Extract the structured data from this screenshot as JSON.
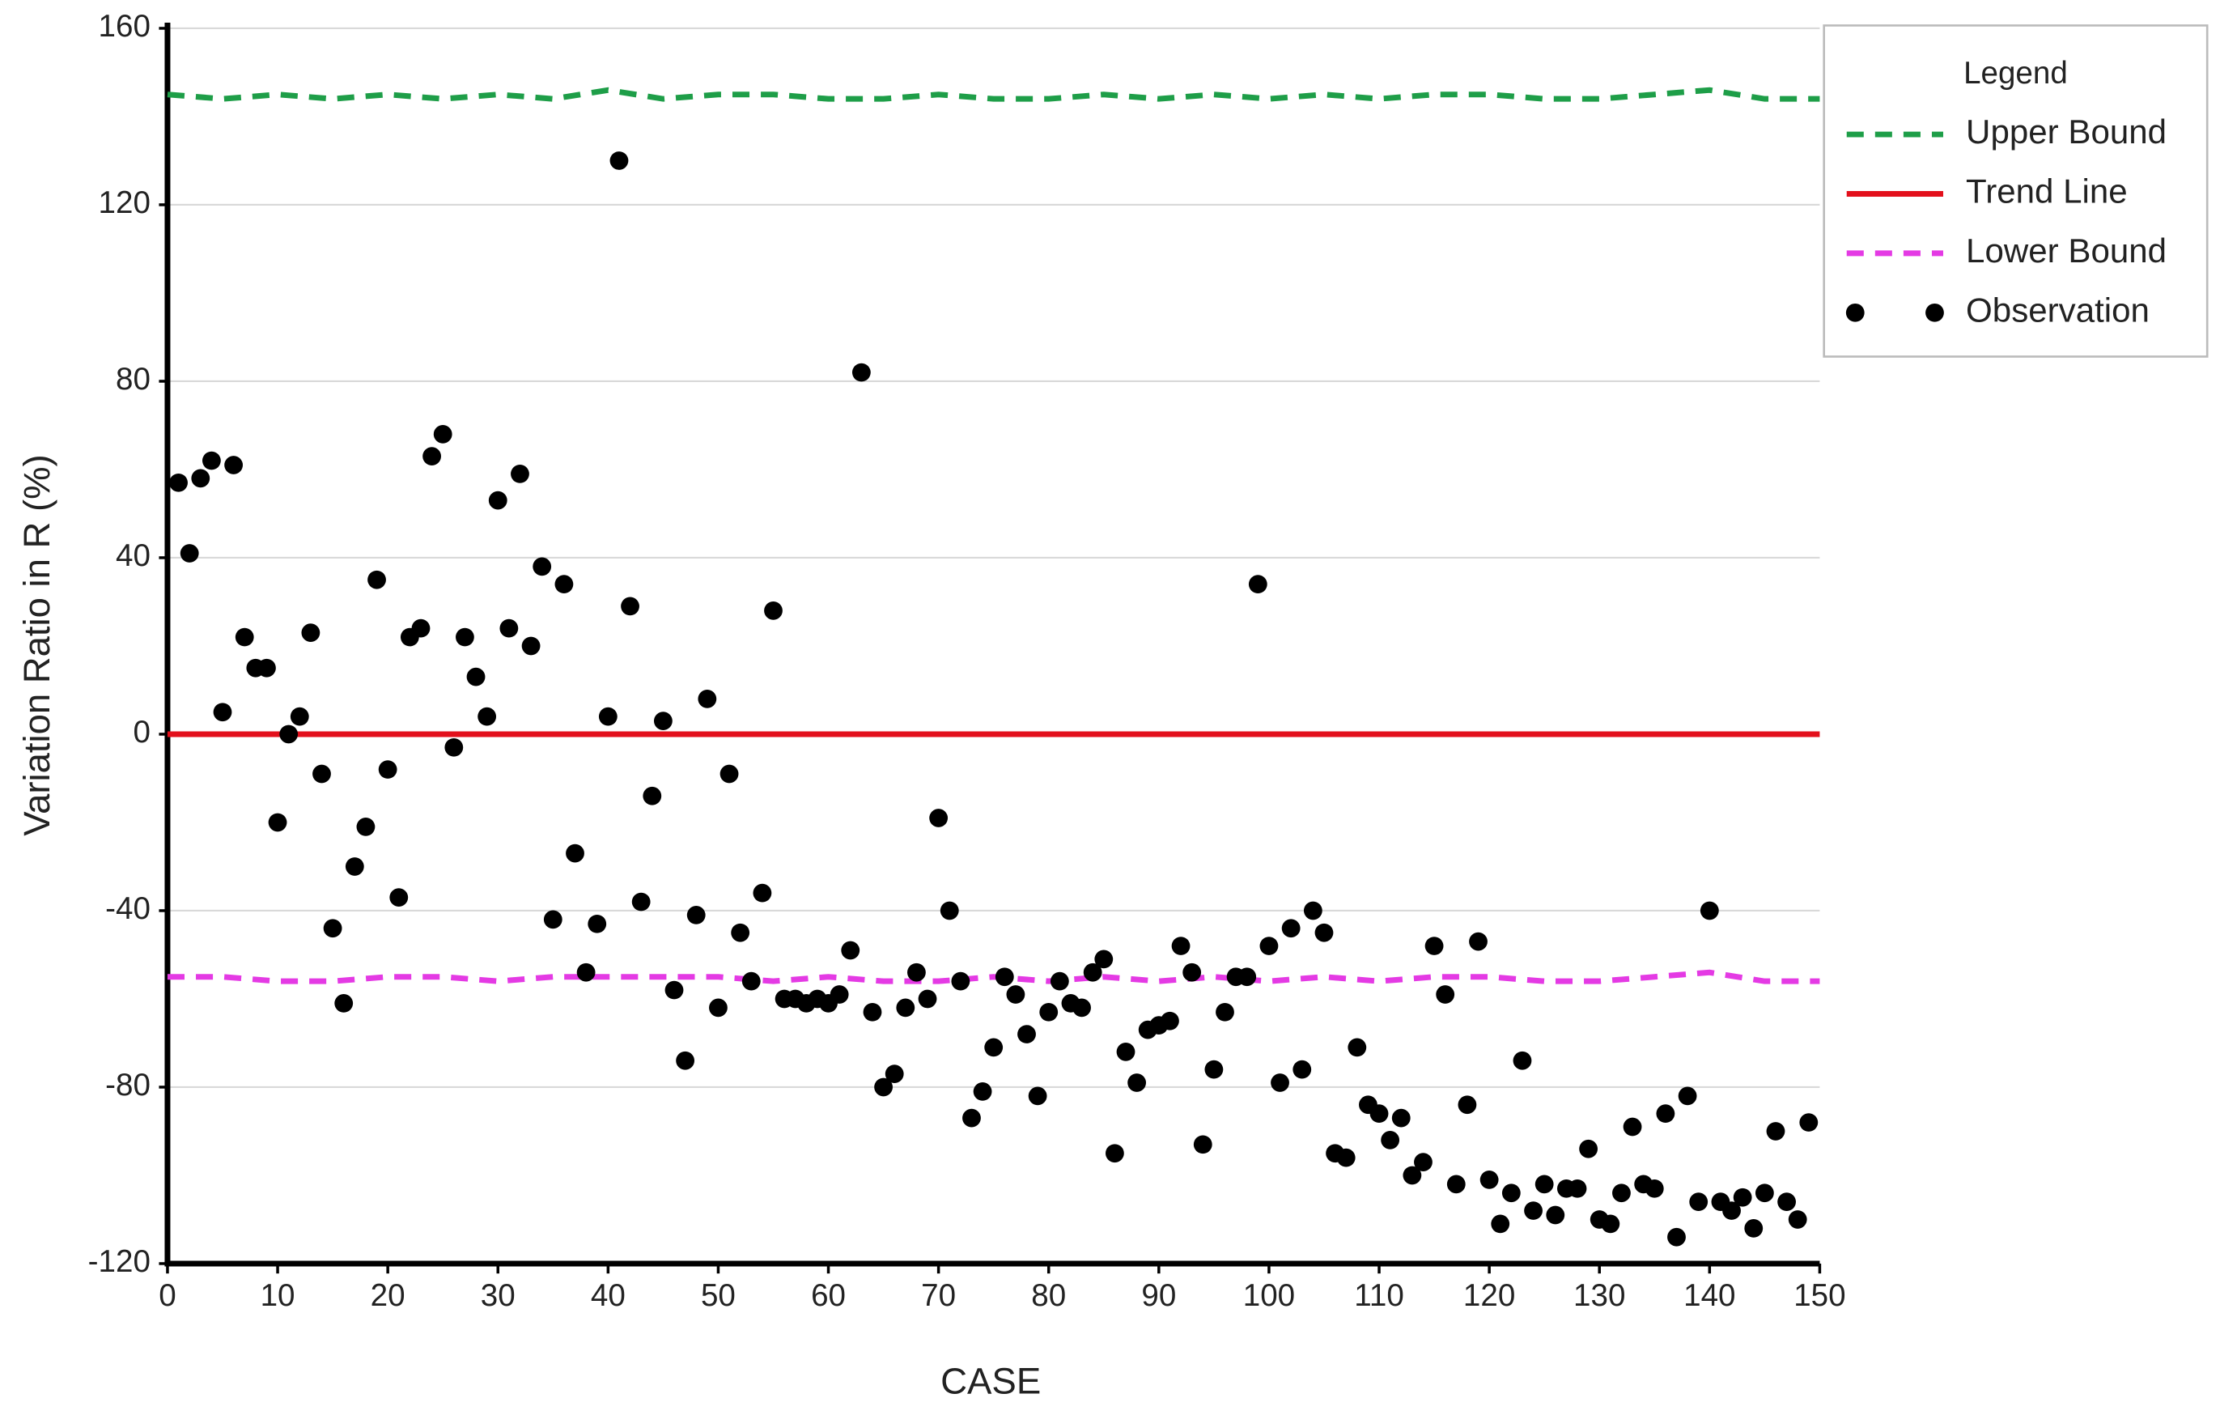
{
  "chart_data": {
    "type": "scatter",
    "x_label": "CASE",
    "y_label": "Variation Ratio in R (%)",
    "legend_title": "Legend",
    "legend": "upper right",
    "grid": "y",
    "xlim": [
      0,
      150
    ],
    "xticks": [
      0,
      10,
      20,
      30,
      40,
      50,
      60,
      70,
      80,
      90,
      100,
      110,
      120,
      130,
      140,
      150
    ],
    "ylim": [
      -120,
      160
    ],
    "yticks": [
      -120,
      -80,
      -40,
      0,
      40,
      80,
      120,
      160
    ],
    "series": [
      {
        "name": "Upper Bound",
        "color": "#1e9e48",
        "mode": "line",
        "dashed": true,
        "x": [
          0,
          5,
          10,
          15,
          20,
          25,
          30,
          35,
          40,
          45,
          50,
          55,
          60,
          65,
          70,
          75,
          80,
          85,
          90,
          95,
          100,
          105,
          110,
          115,
          120,
          125,
          130,
          135,
          140,
          145,
          150
        ],
        "values": [
          145,
          144,
          145,
          144,
          145,
          144,
          145,
          144,
          146,
          144,
          145,
          145,
          144,
          144,
          145,
          144,
          144,
          145,
          144,
          145,
          144,
          145,
          144,
          145,
          145,
          144,
          144,
          145,
          146,
          144,
          144
        ]
      },
      {
        "name": "Trend Line",
        "color": "#e3101c",
        "mode": "line",
        "dashed": false,
        "x": [
          0,
          150
        ],
        "values": [
          0,
          0
        ]
      },
      {
        "name": "Lower Bound",
        "color": "#e43ae4",
        "mode": "line",
        "dashed": true,
        "x": [
          0,
          5,
          10,
          15,
          20,
          25,
          30,
          35,
          40,
          45,
          50,
          55,
          60,
          65,
          70,
          75,
          80,
          85,
          90,
          95,
          100,
          105,
          110,
          115,
          120,
          125,
          130,
          135,
          140,
          145,
          150
        ],
        "values": [
          -55,
          -55,
          -56,
          -56,
          -55,
          -55,
          -56,
          -55,
          -55,
          -55,
          -55,
          -56,
          -55,
          -56,
          -56,
          -55,
          -56,
          -55,
          -56,
          -55,
          -56,
          -55,
          -56,
          -55,
          -55,
          -56,
          -56,
          -55,
          -54,
          -56,
          -56
        ]
      },
      {
        "name": "Observation",
        "color": "#000000",
        "mode": "markers",
        "x": [
          1,
          2,
          3,
          4,
          5,
          6,
          7,
          8,
          9,
          10,
          11,
          12,
          13,
          14,
          15,
          16,
          17,
          18,
          19,
          20,
          21,
          22,
          23,
          24,
          25,
          26,
          27,
          28,
          29,
          30,
          31,
          32,
          33,
          34,
          35,
          36,
          37,
          38,
          39,
          40,
          41,
          42,
          43,
          44,
          45,
          46,
          47,
          48,
          49,
          50,
          51,
          52,
          53,
          54,
          55,
          56,
          57,
          58,
          59,
          60,
          61,
          62,
          63,
          64,
          65,
          66,
          67,
          68,
          69,
          70,
          71,
          72,
          73,
          74,
          75,
          76,
          77,
          78,
          79,
          80,
          81,
          82,
          83,
          84,
          85,
          86,
          87,
          88,
          89,
          90,
          91,
          92,
          93,
          94,
          95,
          96,
          97,
          98,
          99,
          100,
          101,
          102,
          103,
          104,
          105,
          106,
          107,
          108,
          109,
          110,
          111,
          112,
          113,
          114,
          115,
          116,
          117,
          118,
          119,
          120,
          121,
          122,
          123,
          124,
          125,
          126,
          127,
          128,
          129,
          130,
          131,
          132,
          133,
          134,
          135,
          136,
          137,
          138,
          139,
          140,
          141,
          142,
          143,
          144,
          145,
          146,
          147,
          148,
          149
        ],
        "values": [
          57,
          41,
          58,
          62,
          5,
          61,
          22,
          15,
          15,
          -20,
          0,
          4,
          23,
          -9,
          -44,
          -61,
          -30,
          -21,
          35,
          -8,
          -37,
          22,
          24,
          63,
          68,
          -3,
          22,
          13,
          4,
          53,
          24,
          59,
          20,
          38,
          -42,
          34,
          -27,
          -54,
          -43,
          4,
          130,
          29,
          -38,
          -14,
          3,
          -58,
          -74,
          -41,
          8,
          -62,
          -9,
          -45,
          -56,
          -36,
          28,
          -60,
          -60,
          -61,
          -60,
          -61,
          -59,
          -49,
          82,
          -63,
          -80,
          -77,
          -62,
          -54,
          -60,
          -19,
          -40,
          -56,
          -87,
          -81,
          -71,
          -55,
          -59,
          -68,
          -82,
          -63,
          -56,
          -61,
          -62,
          -54,
          -51,
          -95,
          -72,
          -79,
          -67,
          -66,
          -65,
          -48,
          -54,
          -93,
          -76,
          -63,
          -55,
          -55,
          34,
          -48,
          -79,
          -44,
          -76,
          -40,
          -45,
          -95,
          -96,
          -71,
          -84,
          -86,
          -92,
          -87,
          -100,
          -97,
          -48,
          -59,
          -102,
          -84,
          -47,
          -101,
          -111,
          -104,
          -74,
          -108,
          -102,
          -109,
          -103,
          -103,
          -94,
          -110,
          -111,
          -104,
          -89,
          -102,
          -103,
          -86,
          -114,
          -82,
          -106,
          -40,
          -106,
          -108,
          -105,
          -112,
          -104,
          -90,
          -106,
          -110,
          -88
        ]
      }
    ]
  }
}
